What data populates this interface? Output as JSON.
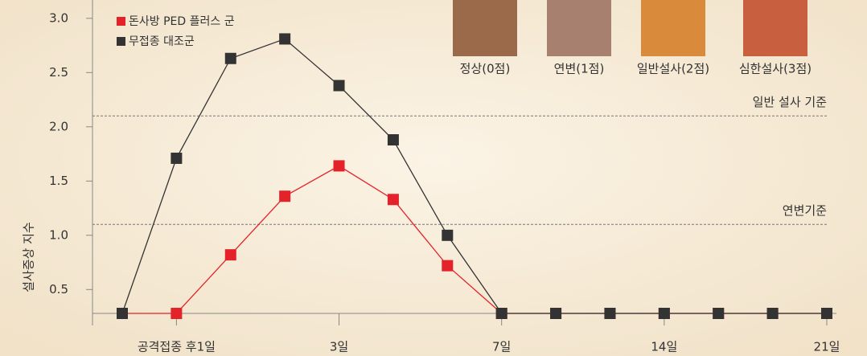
{
  "chart_data": {
    "type": "line",
    "y_label": "설사증상 지수",
    "categories": [
      null,
      "공격접종 후1일",
      null,
      null,
      "3일",
      null,
      null,
      "7일",
      null,
      null,
      "14일",
      null,
      null,
      "21일"
    ],
    "series": [
      {
        "name": "돈사방 PED 플러스 군",
        "color": "#e32229",
        "values": [
          0.28,
          0.28,
          0.82,
          1.36,
          1.64,
          1.33,
          0.72,
          0.28,
          0.28,
          0.28,
          0.28,
          0.28,
          0.28,
          0.28
        ]
      },
      {
        "name": "무접종 대조군",
        "color": "#333333",
        "values": [
          0.28,
          1.71,
          2.63,
          2.81,
          2.38,
          1.88,
          1.0,
          0.28,
          0.28,
          0.28,
          0.28,
          0.28,
          0.28,
          0.28
        ]
      }
    ],
    "ylim": [
      0.28,
      3.1
    ],
    "yticks": [
      {
        "value": 3,
        "label": "3.0"
      },
      2.5,
      {
        "value": 2,
        "label": "2.0"
      },
      1.5,
      {
        "value": 1,
        "label": "1.0"
      },
      0.5
    ],
    "reference_lines": [
      {
        "label": "일반 설사 기준",
        "value": 2.1
      },
      {
        "label": "연변기준",
        "value": 1.1
      }
    ],
    "photo_captions": [
      "정상(0점)",
      "연변(1점)",
      "일반설사(2점)",
      "심한설사(3점)"
    ]
  }
}
